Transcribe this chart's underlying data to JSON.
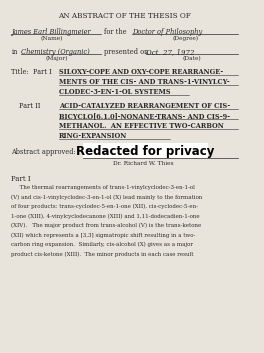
{
  "bg_color": "#e8e4dc",
  "text_color": "#2a2a2a",
  "header": "AN ABSTRACT OF THE THESIS OF",
  "name_label": "James Earl Billingmeier",
  "name_sublabel": "(Name)",
  "for_label": "for the",
  "degree_label": "Doctor of Philosophy",
  "degree_sublabel": "(Degree)",
  "in_label": "in",
  "major_label": "Chemistry (Organic)",
  "major_sublabel": "(Major)",
  "presented_label": "presented on",
  "date_label": "Oct. 27, 1972",
  "date_sublabel": "(Date)",
  "title_prefix": "Title:  Part I",
  "title_line1": "SILOXY-COPE AND OXY-COPE REARRANGE-",
  "title_line2": "MENTS OF THE CIS- AND TRANS-1-VINYLCY-",
  "title_line3": "CLODEC-3-EN-1-OL SYSTEMS",
  "part2_prefix": "Part II",
  "part2_line1": "ACID-CATALYZED REARRANGEMENT OF CIS-",
  "part2_line2": "BICYCLO[6.1.0]-NONANE-TRANS- AND CIS-9-",
  "part2_line3": "METHANOL.  AN EFFECTIVE TWO-CARBON",
  "part2_line4": "RING-EXPANSION",
  "abstract_approved": "Abstract approved:",
  "redacted_text": "Redacted for privacy",
  "advisor_label": "Dr. Richard W. Thies",
  "part1_heading": "Part I",
  "body_text": [
    "     The thermal rearrangements of trans-1-vinylcyclodec-3-en-1-ol",
    "(V) and cis-1-vinylcyclodec-3-en-1-ol (X) lead mainly to the formation",
    "of four products: trans-cyclodec-5-en-1-one (XII), cis-cyclodec-5-en-",
    "1-one (XIII), 4-vinylcyclodecanone (XIII) and 1,11-dodecadien-1-one",
    "(XIV).   The major product from trans-alcohol (V) is the trans-ketone",
    "(XII) which represents a [3,3] sigmatropic shift resulting in a two-",
    "carbon ring expansion.  Similarly, cis-alcohol (X) gives as a major",
    "product cis-ketone (XIII).  The minor products in each case result"
  ]
}
